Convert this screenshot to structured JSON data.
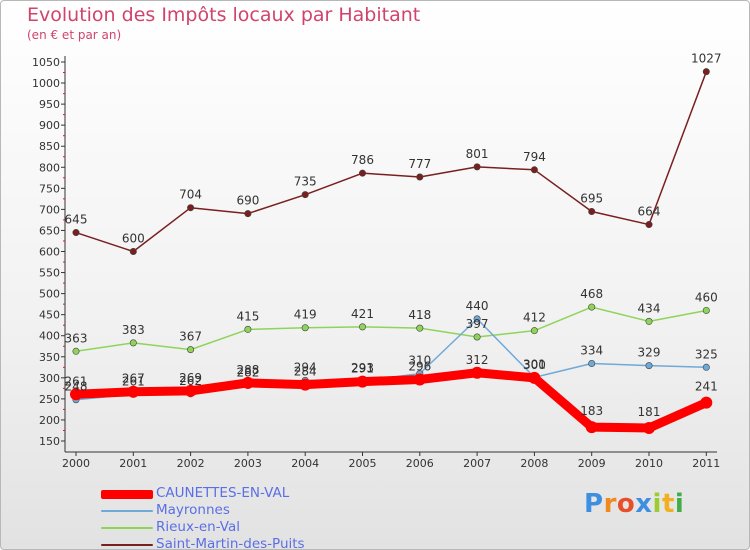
{
  "header": {
    "title": "Evolution des Impôts locaux par Habitant",
    "subtitle": "(en € et par an)"
  },
  "logo": {
    "letters": [
      "P",
      "r",
      "o",
      "x",
      "i",
      "t",
      "i"
    ],
    "colors": [
      "#3f8fe0",
      "#f08a20",
      "#e84e2a",
      "#3f8fe0",
      "#9acd32",
      "#f0b020",
      "#3fae49"
    ]
  },
  "chart_data": {
    "type": "line",
    "title": "Evolution des Impôts locaux par Habitant",
    "subtitle": "(en € et par an)",
    "xlabel": "",
    "ylabel": "",
    "ylim": [
      150,
      1050
    ],
    "ystep": 50,
    "grid": false,
    "legend_position": "bottom-left",
    "categories": [
      "2000",
      "2001",
      "2002",
      "2003",
      "2004",
      "2005",
      "2006",
      "2007",
      "2008",
      "2009",
      "2010",
      "2011"
    ],
    "series": [
      {
        "name": "Saint-Martin-des-Puits",
        "color": "#7a1f1f",
        "values": [
          645,
          600,
          704,
          690,
          735,
          786,
          777,
          801,
          794,
          695,
          664,
          1027
        ],
        "labels": [
          "645",
          "600",
          "704",
          "690",
          "735",
          "786",
          "777",
          "801",
          "794",
          "695",
          "664",
          "1027"
        ]
      },
      {
        "name": "Rieux-en-Val",
        "color": "#8fd45a",
        "values": [
          363,
          383,
          367,
          415,
          419,
          421,
          418,
          397,
          412,
          468,
          434,
          460
        ],
        "labels": [
          "363",
          "383",
          "367",
          "415",
          "419",
          "421",
          "418",
          "397",
          "412",
          "468",
          "434",
          "460"
        ]
      },
      {
        "name": "Mayronnes",
        "color": "#6fa9d8",
        "values": [
          248,
          261,
          262,
          282,
          294,
          293,
          310,
          440,
          301,
          334,
          329,
          325
        ],
        "labels": [
          "248",
          "261",
          "262",
          "282",
          "294",
          "293",
          "310",
          "440",
          "301",
          "334",
          "329",
          "325"
        ]
      },
      {
        "name": "CAUNETTES-EN-VAL",
        "color": "#ff0000",
        "values": [
          261,
          267,
          269,
          288,
          284,
          291,
          296,
          312,
          300,
          183,
          181,
          241
        ],
        "labels": [
          "261",
          "267",
          "269",
          "288",
          "284",
          "291",
          "296",
          "312",
          "300",
          "183",
          "181",
          "241"
        ]
      }
    ],
    "legend_order": [
      "CAUNETTES-EN-VAL",
      "Mayronnes",
      "Rieux-en-Val",
      "Saint-Martin-des-Puits"
    ]
  }
}
